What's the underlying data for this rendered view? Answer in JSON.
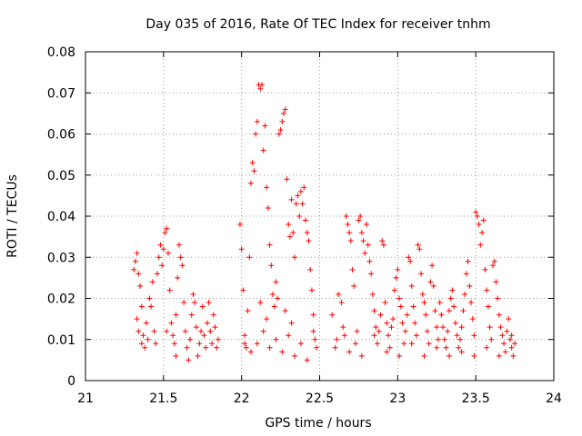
{
  "chart_data": {
    "type": "scatter",
    "title": "Day 035 of 2016, Rate Of TEC Index for receiver tnhm",
    "xlabel": "GPS time / hours",
    "ylabel": "ROTI / TECUs",
    "xlim": [
      21,
      24
    ],
    "ylim": [
      0,
      0.08
    ],
    "x_ticks": [
      21,
      21.5,
      22,
      22.5,
      23,
      23.5,
      24
    ],
    "x_tick_labels": [
      "21",
      "21.5",
      "22",
      "22.5",
      "23",
      "23.5",
      "24"
    ],
    "y_ticks": [
      0,
      0.01,
      0.02,
      0.03,
      0.04,
      0.05,
      0.06,
      0.07,
      0.08
    ],
    "y_tick_labels": [
      "0",
      "0.01",
      "0.02",
      "0.03",
      "0.04",
      "0.05",
      "0.06",
      "0.07",
      "0.08"
    ],
    "grid": true,
    "marker": "+",
    "color": "#ff0000",
    "series": [
      {
        "name": "tnhm",
        "points": [
          [
            21.31,
            0.027
          ],
          [
            21.32,
            0.029
          ],
          [
            21.33,
            0.031
          ],
          [
            21.34,
            0.026
          ],
          [
            21.35,
            0.023
          ],
          [
            21.33,
            0.015
          ],
          [
            21.34,
            0.012
          ],
          [
            21.36,
            0.009
          ],
          [
            21.37,
            0.011
          ],
          [
            21.38,
            0.008
          ],
          [
            21.39,
            0.014
          ],
          [
            21.4,
            0.01
          ],
          [
            21.41,
            0.02
          ],
          [
            21.42,
            0.018
          ],
          [
            21.43,
            0.024
          ],
          [
            21.44,
            0.012
          ],
          [
            21.45,
            0.009
          ],
          [
            21.46,
            0.026
          ],
          [
            21.47,
            0.03
          ],
          [
            21.48,
            0.033
          ],
          [
            21.49,
            0.028
          ],
          [
            21.5,
            0.032
          ],
          [
            21.51,
            0.036
          ],
          [
            21.52,
            0.037
          ],
          [
            21.53,
            0.031
          ],
          [
            21.54,
            0.022
          ],
          [
            21.55,
            0.014
          ],
          [
            21.56,
            0.011
          ],
          [
            21.57,
            0.009
          ],
          [
            21.58,
            0.016
          ],
          [
            21.59,
            0.025
          ],
          [
            21.6,
            0.033
          ],
          [
            21.61,
            0.03
          ],
          [
            21.62,
            0.028
          ],
          [
            21.63,
            0.019
          ],
          [
            21.64,
            0.012
          ],
          [
            21.65,
            0.008
          ],
          [
            21.66,
            0.005
          ],
          [
            21.67,
            0.01
          ],
          [
            21.68,
            0.016
          ],
          [
            21.69,
            0.021
          ],
          [
            21.7,
            0.019
          ],
          [
            21.71,
            0.013
          ],
          [
            21.72,
            0.006
          ],
          [
            21.73,
            0.009
          ],
          [
            21.74,
            0.012
          ],
          [
            21.75,
            0.018
          ],
          [
            21.76,
            0.011
          ],
          [
            21.77,
            0.008
          ],
          [
            21.78,
            0.014
          ],
          [
            21.79,
            0.019
          ],
          [
            21.8,
            0.012
          ],
          [
            21.81,
            0.009
          ],
          [
            21.82,
            0.016
          ],
          [
            21.83,
            0.013
          ],
          [
            21.84,
            0.008
          ],
          [
            21.85,
            0.01
          ],
          [
            21.36,
            0.018
          ],
          [
            21.52,
            0.012
          ],
          [
            21.58,
            0.006
          ],
          [
            21.99,
            0.038
          ],
          [
            22.0,
            0.032
          ],
          [
            22.01,
            0.022
          ],
          [
            22.02,
            0.011
          ],
          [
            22.03,
            0.008
          ],
          [
            22.04,
            0.017
          ],
          [
            22.05,
            0.03
          ],
          [
            22.06,
            0.048
          ],
          [
            22.07,
            0.053
          ],
          [
            22.08,
            0.051
          ],
          [
            22.09,
            0.06
          ],
          [
            22.1,
            0.063
          ],
          [
            22.11,
            0.072
          ],
          [
            22.12,
            0.071
          ],
          [
            22.13,
            0.072
          ],
          [
            22.14,
            0.056
          ],
          [
            22.15,
            0.062
          ],
          [
            22.16,
            0.047
          ],
          [
            22.17,
            0.042
          ],
          [
            22.18,
            0.033
          ],
          [
            22.19,
            0.028
          ],
          [
            22.2,
            0.021
          ],
          [
            22.21,
            0.018
          ],
          [
            22.22,
            0.024
          ],
          [
            22.23,
            0.02
          ],
          [
            22.24,
            0.06
          ],
          [
            22.25,
            0.061
          ],
          [
            22.26,
            0.063
          ],
          [
            22.27,
            0.065
          ],
          [
            22.28,
            0.066
          ],
          [
            22.29,
            0.049
          ],
          [
            22.3,
            0.038
          ],
          [
            22.31,
            0.035
          ],
          [
            22.32,
            0.044
          ],
          [
            22.33,
            0.036
          ],
          [
            22.34,
            0.03
          ],
          [
            22.35,
            0.043
          ],
          [
            22.36,
            0.045
          ],
          [
            22.37,
            0.04
          ],
          [
            22.38,
            0.046
          ],
          [
            22.39,
            0.043
          ],
          [
            22.4,
            0.047
          ],
          [
            22.41,
            0.039
          ],
          [
            22.42,
            0.036
          ],
          [
            22.43,
            0.034
          ],
          [
            22.44,
            0.027
          ],
          [
            22.45,
            0.022
          ],
          [
            22.46,
            0.016
          ],
          [
            22.47,
            0.01
          ],
          [
            22.48,
            0.008
          ],
          [
            22.02,
            0.009
          ],
          [
            22.06,
            0.007
          ],
          [
            22.1,
            0.009
          ],
          [
            22.14,
            0.012
          ],
          [
            22.18,
            0.008
          ],
          [
            22.22,
            0.01
          ],
          [
            22.26,
            0.007
          ],
          [
            22.3,
            0.011
          ],
          [
            22.34,
            0.006
          ],
          [
            22.38,
            0.009
          ],
          [
            22.42,
            0.005
          ],
          [
            22.46,
            0.012
          ],
          [
            22.12,
            0.019
          ],
          [
            22.16,
            0.015
          ],
          [
            22.28,
            0.017
          ],
          [
            22.32,
            0.014
          ],
          [
            22.58,
            0.016
          ],
          [
            22.6,
            0.008
          ],
          [
            22.62,
            0.021
          ],
          [
            22.64,
            0.019
          ],
          [
            22.65,
            0.013
          ],
          [
            22.66,
            0.011
          ],
          [
            22.67,
            0.04
          ],
          [
            22.68,
            0.038
          ],
          [
            22.69,
            0.036
          ],
          [
            22.7,
            0.034
          ],
          [
            22.71,
            0.027
          ],
          [
            22.72,
            0.023
          ],
          [
            22.73,
            0.009
          ],
          [
            22.74,
            0.012
          ],
          [
            22.75,
            0.039
          ],
          [
            22.76,
            0.04
          ],
          [
            22.77,
            0.036
          ],
          [
            22.78,
            0.034
          ],
          [
            22.79,
            0.031
          ],
          [
            22.8,
            0.038
          ],
          [
            22.81,
            0.033
          ],
          [
            22.82,
            0.029
          ],
          [
            22.83,
            0.026
          ],
          [
            22.84,
            0.021
          ],
          [
            22.85,
            0.017
          ],
          [
            22.86,
            0.013
          ],
          [
            22.87,
            0.009
          ],
          [
            22.88,
            0.012
          ],
          [
            22.89,
            0.016
          ],
          [
            22.9,
            0.034
          ],
          [
            22.91,
            0.033
          ],
          [
            22.92,
            0.019
          ],
          [
            22.93,
            0.014
          ],
          [
            22.94,
            0.011
          ],
          [
            22.95,
            0.008
          ],
          [
            22.96,
            0.013
          ],
          [
            22.97,
            0.015
          ],
          [
            22.98,
            0.022
          ],
          [
            22.99,
            0.025
          ],
          [
            23.0,
            0.027
          ],
          [
            23.01,
            0.02
          ],
          [
            23.02,
            0.018
          ],
          [
            23.03,
            0.014
          ],
          [
            23.04,
            0.009
          ],
          [
            23.05,
            0.012
          ],
          [
            23.06,
            0.016
          ],
          [
            23.07,
            0.03
          ],
          [
            23.08,
            0.029
          ],
          [
            23.09,
            0.023
          ],
          [
            23.1,
            0.018
          ],
          [
            23.11,
            0.014
          ],
          [
            23.12,
            0.011
          ],
          [
            23.13,
            0.033
          ],
          [
            23.14,
            0.032
          ],
          [
            23.15,
            0.026
          ],
          [
            23.16,
            0.021
          ],
          [
            23.17,
            0.019
          ],
          [
            23.18,
            0.016
          ],
          [
            23.19,
            0.012
          ],
          [
            23.2,
            0.009
          ],
          [
            23.21,
            0.024
          ],
          [
            23.22,
            0.028
          ],
          [
            23.23,
            0.023
          ],
          [
            23.24,
            0.017
          ],
          [
            23.25,
            0.013
          ],
          [
            23.26,
            0.01
          ],
          [
            23.27,
            0.019
          ],
          [
            23.28,
            0.016
          ],
          [
            23.29,
            0.013
          ],
          [
            23.3,
            0.01
          ],
          [
            23.31,
            0.008
          ],
          [
            23.32,
            0.012
          ],
          [
            23.33,
            0.017
          ],
          [
            23.34,
            0.02
          ],
          [
            23.35,
            0.022
          ],
          [
            23.36,
            0.018
          ],
          [
            23.37,
            0.014
          ],
          [
            23.38,
            0.011
          ],
          [
            23.39,
            0.008
          ],
          [
            23.4,
            0.01
          ],
          [
            23.41,
            0.013
          ],
          [
            23.42,
            0.017
          ],
          [
            23.43,
            0.021
          ],
          [
            23.44,
            0.026
          ],
          [
            23.45,
            0.029
          ],
          [
            23.46,
            0.023
          ],
          [
            23.47,
            0.019
          ],
          [
            23.48,
            0.015
          ],
          [
            23.49,
            0.011
          ],
          [
            23.5,
            0.041
          ],
          [
            23.51,
            0.04
          ],
          [
            23.52,
            0.038
          ],
          [
            23.53,
            0.033
          ],
          [
            23.54,
            0.036
          ],
          [
            23.55,
            0.039
          ],
          [
            23.56,
            0.027
          ],
          [
            23.57,
            0.022
          ],
          [
            23.58,
            0.018
          ],
          [
            23.59,
            0.013
          ],
          [
            23.6,
            0.01
          ],
          [
            23.61,
            0.028
          ],
          [
            23.62,
            0.029
          ],
          [
            23.63,
            0.024
          ],
          [
            23.64,
            0.02
          ],
          [
            23.65,
            0.016
          ],
          [
            23.66,
            0.013
          ],
          [
            23.67,
            0.011
          ],
          [
            23.68,
            0.009
          ],
          [
            23.69,
            0.007
          ],
          [
            23.7,
            0.012
          ],
          [
            23.71,
            0.015
          ],
          [
            23.72,
            0.01
          ],
          [
            23.73,
            0.008
          ],
          [
            23.74,
            0.006
          ],
          [
            23.75,
            0.009
          ],
          [
            22.61,
            0.01
          ],
          [
            22.69,
            0.007
          ],
          [
            22.77,
            0.006
          ],
          [
            22.85,
            0.011
          ],
          [
            22.93,
            0.007
          ],
          [
            23.01,
            0.006
          ],
          [
            23.09,
            0.009
          ],
          [
            23.17,
            0.006
          ],
          [
            23.25,
            0.008
          ],
          [
            23.33,
            0.006
          ],
          [
            23.41,
            0.007
          ],
          [
            23.49,
            0.006
          ],
          [
            23.57,
            0.008
          ],
          [
            23.65,
            0.006
          ],
          [
            23.73,
            0.011
          ]
        ]
      }
    ]
  }
}
